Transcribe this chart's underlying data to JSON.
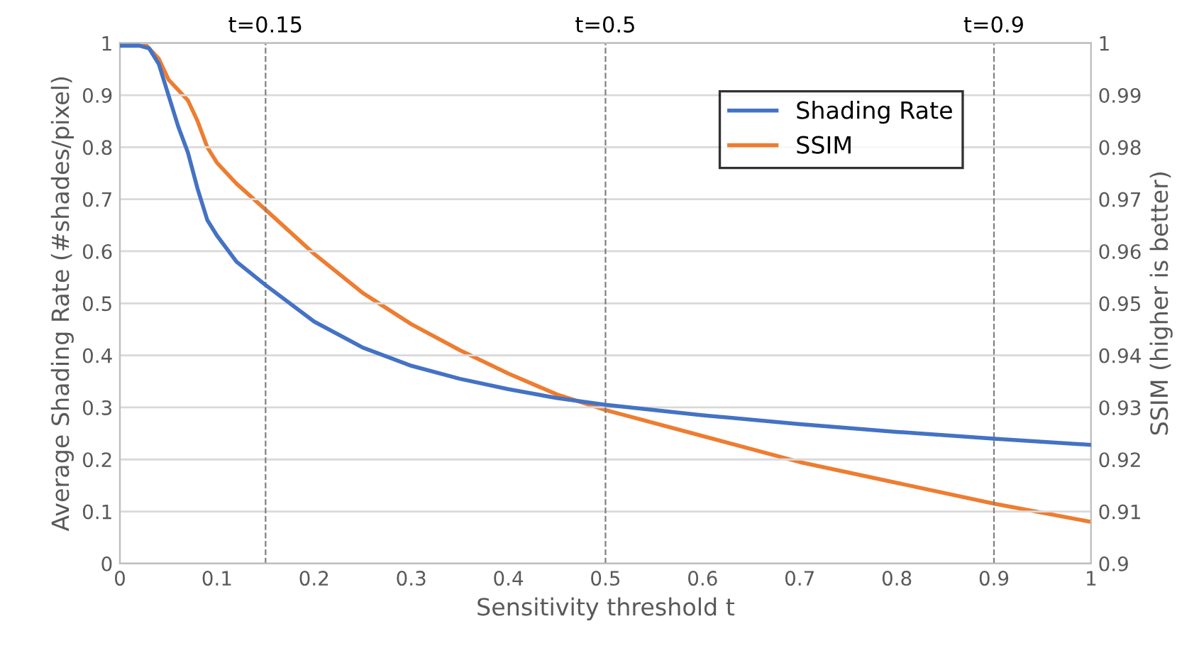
{
  "chart_data": {
    "type": "line",
    "xlabel": "Sensitivity threshold t",
    "ylabel": "Average Shading Rate (#shades/pixel)",
    "y2label": "SSIM (higher is better)",
    "xlim": [
      0,
      1
    ],
    "xticks": [
      0,
      0.1,
      0.2,
      0.3,
      0.4,
      0.5,
      0.6,
      0.7,
      0.8,
      0.9,
      1
    ],
    "ylim": [
      0,
      1
    ],
    "yticks": [
      0,
      0.1,
      0.2,
      0.3,
      0.4,
      0.5,
      0.6,
      0.7,
      0.8,
      0.9,
      1
    ],
    "y2lim": [
      0.9,
      1
    ],
    "y2ticks": [
      0.9,
      0.91,
      0.92,
      0.93,
      0.94,
      0.95,
      0.96,
      0.97,
      0.98,
      0.99,
      1
    ],
    "grid": "y",
    "legend": "top right",
    "line_style": "solid",
    "marker": "none",
    "series": [
      {
        "name": "Shading Rate",
        "color": "#4472c4",
        "x": [
          0,
          0.02,
          0.03,
          0.04,
          0.05,
          0.06,
          0.07,
          0.08,
          0.09,
          0.1,
          0.12,
          0.15,
          0.2,
          0.25,
          0.3,
          0.35,
          0.4,
          0.45,
          0.5,
          0.6,
          0.7,
          0.8,
          0.9,
          1
        ],
        "values": [
          0.995,
          0.995,
          0.99,
          0.96,
          0.9,
          0.84,
          0.79,
          0.72,
          0.66,
          0.63,
          0.58,
          0.535,
          0.465,
          0.415,
          0.38,
          0.355,
          0.335,
          0.318,
          0.305,
          0.285,
          0.268,
          0.253,
          0.24,
          0.228
        ]
      },
      {
        "name": "SSIM",
        "color": "#ed7d31",
        "axis": "y2",
        "x": [
          0,
          0.025,
          0.04,
          0.05,
          0.07,
          0.08,
          0.09,
          0.1,
          0.12,
          0.15,
          0.2,
          0.25,
          0.3,
          0.35,
          0.4,
          0.45,
          0.5,
          0.6,
          0.7,
          0.8,
          0.9,
          1
        ],
        "values": [
          1,
          1,
          0.997,
          0.993,
          0.989,
          0.985,
          0.98,
          0.977,
          0.973,
          0.968,
          0.9595,
          0.952,
          0.946,
          0.941,
          0.9365,
          0.9325,
          0.9295,
          0.9245,
          0.9195,
          0.9155,
          0.9115,
          0.908
        ]
      }
    ],
    "ref_lines": [
      {
        "axis": "x",
        "value": 0.15,
        "label": "t=0.15",
        "color": "#808080",
        "line_style": "dashed"
      },
      {
        "axis": "x",
        "value": 0.5,
        "label": "t=0.5",
        "color": "#808080",
        "line_style": "dashed"
      },
      {
        "axis": "x",
        "value": 0.9,
        "label": "t=0.9",
        "color": "#808080",
        "line_style": "dashed"
      }
    ]
  }
}
